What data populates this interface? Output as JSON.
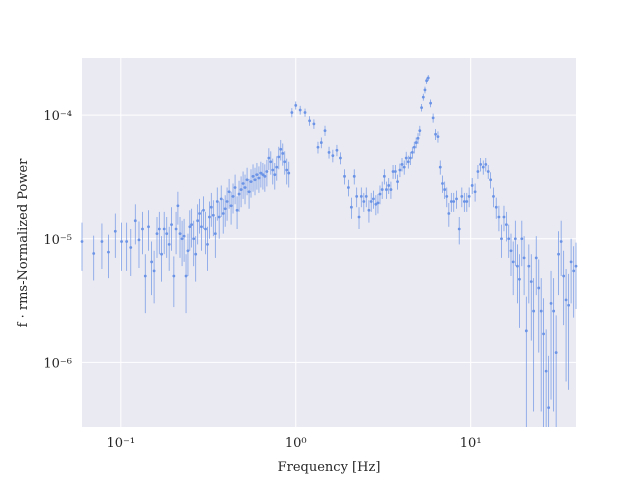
{
  "chart_data": {
    "type": "scatter",
    "title": "",
    "xlabel": "Frequency [Hz]",
    "ylabel": "f · rms-Normalized Power",
    "xscale": "log",
    "yscale": "log",
    "xlim": [
      0.06,
      40
    ],
    "ylim": [
      3e-07,
      0.00029
    ],
    "grid": true,
    "colors": {
      "background": "#eaeaf2",
      "grid": "#ffffff",
      "points": "#6b93e6",
      "text": "#262626"
    },
    "x_ticks": [
      {
        "value": 0.1,
        "label": "10⁻¹"
      },
      {
        "value": 1,
        "label": "10⁰"
      },
      {
        "value": 10,
        "label": "10¹"
      }
    ],
    "y_ticks": [
      {
        "value": 1e-06,
        "label": "10⁻⁶"
      },
      {
        "value": 1e-05,
        "label": "10⁻⁵"
      },
      {
        "value": 0.0001,
        "label": "10⁻⁴"
      }
    ],
    "series": [
      {
        "points": [
          [
            0.06,
            9.5e-06,
            4e-06
          ],
          [
            0.07,
            7.6e-06,
            3e-06
          ],
          [
            0.078,
            9.5e-06,
            3.8e-06
          ],
          [
            0.085,
            7.8e-06,
            3e-06
          ],
          [
            0.093,
            1.15e-05,
            4.5e-06
          ],
          [
            0.101,
            9.5e-06,
            4e-06
          ],
          [
            0.108,
            9.5e-06,
            4e-06
          ],
          [
            0.114,
            8.5e-06,
            3.5e-06
          ],
          [
            0.121,
            1.4e-05,
            5e-06
          ],
          [
            0.127,
            9.8e-06,
            4e-06
          ],
          [
            0.133,
            1.2e-05,
            4.5e-06
          ],
          [
            0.138,
            5e-06,
            2.5e-06
          ],
          [
            0.144,
            1.25e-05,
            4.5e-06
          ],
          [
            0.15,
            6.5e-06,
            3e-06
          ],
          [
            0.155,
            5.5e-06,
            2.5e-06
          ],
          [
            0.161,
            1.1e-05,
            4e-06
          ],
          [
            0.166,
            1.2e-05,
            4.5e-06
          ],
          [
            0.171,
            7.5e-06,
            3e-06
          ],
          [
            0.177,
            1.2e-05,
            4.5e-06
          ],
          [
            0.183,
            1.1e-05,
            4e-06
          ],
          [
            0.189,
            9e-06,
            3.5e-06
          ],
          [
            0.195,
            1.3e-05,
            5e-06
          ],
          [
            0.201,
            5e-06,
            2.2e-06
          ],
          [
            0.207,
            1.2e-05,
            4.5e-06
          ],
          [
            0.212,
            1.85e-05,
            5.5e-06
          ],
          [
            0.218,
            1.1e-05,
            4e-06
          ],
          [
            0.224,
            1e-05,
            4e-06
          ],
          [
            0.23,
            1.05e-05,
            4e-06
          ],
          [
            0.236,
            5e-06,
            2.5e-06
          ],
          [
            0.242,
            8e-06,
            3e-06
          ],
          [
            0.248,
            1.25e-05,
            4.5e-06
          ],
          [
            0.254,
            1.3e-05,
            4.5e-06
          ],
          [
            0.261,
            1e-05,
            4e-06
          ],
          [
            0.268,
            7.5e-06,
            3e-06
          ],
          [
            0.275,
            1.4e-05,
            5e-06
          ],
          [
            0.282,
            1.6e-05,
            5e-06
          ],
          [
            0.289,
            1.25e-05,
            4.5e-06
          ],
          [
            0.297,
            1.7e-05,
            5e-06
          ],
          [
            0.305,
            1.2e-05,
            4.5e-06
          ],
          [
            0.313,
            9e-06,
            3.5e-06
          ],
          [
            0.321,
            1.5e-05,
            5e-06
          ],
          [
            0.329,
            1.8e-05,
            5.5e-06
          ],
          [
            0.338,
            1.55e-05,
            5e-06
          ],
          [
            0.347,
            1.1e-05,
            4e-06
          ],
          [
            0.356,
            2e-05,
            6e-06
          ],
          [
            0.365,
            1.5e-05,
            5e-06
          ],
          [
            0.375,
            2.1e-05,
            6e-06
          ],
          [
            0.385,
            1.6e-05,
            5e-06
          ],
          [
            0.395,
            1.75e-05,
            5e-06
          ],
          [
            0.405,
            2e-05,
            6e-06
          ],
          [
            0.416,
            2.4e-05,
            6.5e-06
          ],
          [
            0.427,
            1.85e-05,
            5.5e-06
          ],
          [
            0.438,
            2.2e-05,
            6e-06
          ],
          [
            0.45,
            2.6e-05,
            7e-06
          ],
          [
            0.462,
            1.7e-05,
            5e-06
          ],
          [
            0.474,
            2.3e-05,
            6.5e-06
          ],
          [
            0.487,
            2.5e-05,
            7e-06
          ],
          [
            0.5,
            2.8e-05,
            7e-06
          ],
          [
            0.513,
            2.6e-05,
            7e-06
          ],
          [
            0.527,
            3e-05,
            7.5e-06
          ],
          [
            0.541,
            2.4e-05,
            6.5e-06
          ],
          [
            0.555,
            2.9e-05,
            7.5e-06
          ],
          [
            0.57,
            3.2e-05,
            8e-06
          ],
          [
            0.585,
            3e-05,
            7.5e-06
          ],
          [
            0.6,
            3.3e-05,
            8e-06
          ],
          [
            0.616,
            3.1e-05,
            7.5e-06
          ],
          [
            0.632,
            3.4e-05,
            8e-06
          ],
          [
            0.649,
            3.3e-05,
            8e-06
          ],
          [
            0.666,
            3.2e-05,
            8e-06
          ],
          [
            0.684,
            3.5e-05,
            8.5e-06
          ],
          [
            0.702,
            4.5e-05,
            9e-06
          ],
          [
            0.72,
            4.2e-05,
            9e-06
          ],
          [
            0.739,
            3.6e-05,
            8.5e-06
          ],
          [
            0.759,
            3.3e-05,
            8e-06
          ],
          [
            0.779,
            3.8e-05,
            8.5e-06
          ],
          [
            0.8,
            4.6e-05,
            9.5e-06
          ],
          [
            0.821,
            5.3e-05,
            1e-05
          ],
          [
            0.843,
            4.9e-05,
            1e-05
          ],
          [
            0.865,
            4.2e-05,
            9e-06
          ],
          [
            0.888,
            3.6e-05,
            8.5e-06
          ],
          [
            0.912,
            3.4e-05,
            8e-06
          ],
          [
            0.95,
            0.000105,
            9e-06
          ],
          [
            1.0,
            0.00012,
            9e-06
          ],
          [
            1.06,
            0.00011,
            9e-06
          ],
          [
            1.13,
            0.000105,
            8e-06
          ],
          [
            1.2,
            9e-05,
            8e-06
          ],
          [
            1.27,
            8.5e-05,
            7.5e-06
          ],
          [
            1.34,
            5.5e-05,
            6e-06
          ],
          [
            1.4,
            6e-05,
            6e-06
          ],
          [
            1.47,
            7.5e-05,
            7e-06
          ],
          [
            1.55,
            5e-05,
            5.5e-06
          ],
          [
            1.63,
            4.7e-05,
            5.5e-06
          ],
          [
            1.72,
            5.2e-05,
            5.5e-06
          ],
          [
            1.8,
            4.5e-05,
            5e-06
          ],
          [
            1.9,
            3.2e-05,
            4.5e-06
          ],
          [
            2.0,
            2.6e-05,
            4e-06
          ],
          [
            2.08,
            1.8e-05,
            3.5e-06
          ],
          [
            2.16,
            3.2e-05,
            4.5e-06
          ],
          [
            2.23,
            2.2e-05,
            4e-06
          ],
          [
            2.3,
            1.5e-05,
            3e-06
          ],
          [
            2.37,
            2.2e-05,
            4e-06
          ],
          [
            2.45,
            2e-05,
            3.5e-06
          ],
          [
            2.53,
            2.2e-05,
            4e-06
          ],
          [
            2.62,
            1.7e-05,
            3.5e-06
          ],
          [
            2.7,
            2e-05,
            3.5e-06
          ],
          [
            2.78,
            2.1e-05,
            3.5e-06
          ],
          [
            2.87,
            1.9e-05,
            3.5e-06
          ],
          [
            2.95,
            1.95e-05,
            3.5e-06
          ],
          [
            3.03,
            2.3e-05,
            4e-06
          ],
          [
            3.12,
            2.5e-05,
            4e-06
          ],
          [
            3.21,
            3.2e-05,
            4.5e-06
          ],
          [
            3.3,
            2.5e-05,
            4e-06
          ],
          [
            3.4,
            2.7e-05,
            4e-06
          ],
          [
            3.5,
            2.5e-05,
            4e-06
          ],
          [
            3.6,
            3.5e-05,
            4.5e-06
          ],
          [
            3.71,
            3.5e-05,
            4.5e-06
          ],
          [
            3.82,
            2.9e-05,
            4e-06
          ],
          [
            3.94,
            3.6e-05,
            4.5e-06
          ],
          [
            4.05,
            4e-05,
            5e-06
          ],
          [
            4.17,
            3.8e-05,
            5e-06
          ],
          [
            4.28,
            4.5e-05,
            5.5e-06
          ],
          [
            4.4,
            4.2e-05,
            5e-06
          ],
          [
            4.52,
            4.5e-05,
            5.5e-06
          ],
          [
            4.64,
            5e-05,
            5.5e-06
          ],
          [
            4.76,
            5.5e-05,
            6e-06
          ],
          [
            4.88,
            6e-05,
            6e-06
          ],
          [
            5.0,
            6.5e-05,
            6.5e-06
          ],
          [
            5.12,
            7.5e-05,
            7e-06
          ],
          [
            5.24,
            0.000115,
            8e-06
          ],
          [
            5.36,
            0.00014,
            9e-06
          ],
          [
            5.48,
            0.00016,
            1e-05
          ],
          [
            5.6,
            0.00019,
            1.1e-05
          ],
          [
            5.72,
            0.0002,
            1.1e-05
          ],
          [
            5.9,
            0.000125,
            9e-06
          ],
          [
            6.1,
            9.5e-05,
            8e-06
          ],
          [
            6.3,
            7e-05,
            7e-06
          ],
          [
            6.5,
            6.7e-05,
            7e-06
          ],
          [
            6.7,
            3.8e-05,
            5e-06
          ],
          [
            6.9,
            2.8e-05,
            4.5e-06
          ],
          [
            7.1,
            2.5e-05,
            4e-06
          ],
          [
            7.3,
            2.2e-05,
            4e-06
          ],
          [
            7.5,
            1.6e-05,
            3.5e-06
          ],
          [
            7.75,
            2e-05,
            3.5e-06
          ],
          [
            8.0,
            2e-05,
            3.5e-06
          ],
          [
            8.3,
            2.1e-05,
            3.5e-06
          ],
          [
            8.6,
            1.2e-05,
            3e-06
          ],
          [
            8.9,
            2.2e-05,
            4e-06
          ],
          [
            9.2,
            2e-05,
            3.5e-06
          ],
          [
            9.5,
            2e-05,
            3.5e-06
          ],
          [
            9.8,
            2.2e-05,
            4e-06
          ],
          [
            10.2,
            2.7e-05,
            4e-06
          ],
          [
            10.6,
            2.4e-05,
            4e-06
          ],
          [
            11.0,
            3.5e-05,
            4.5e-06
          ],
          [
            11.4,
            4e-05,
            5e-06
          ],
          [
            11.8,
            3.8e-05,
            5e-06
          ],
          [
            12.2,
            4e-05,
            5e-06
          ],
          [
            12.6,
            3.5e-05,
            4.5e-06
          ],
          [
            13.0,
            3e-05,
            4.5e-06
          ],
          [
            13.5,
            2.2e-05,
            4e-06
          ],
          [
            14.0,
            1.8e-05,
            3.5e-06
          ],
          [
            14.5,
            1.5e-05,
            3.5e-06
          ],
          [
            15.0,
            1e-05,
            3e-06
          ],
          [
            15.5,
            1.5e-05,
            3.5e-06
          ],
          [
            16.0,
            1.3e-05,
            3.5e-06
          ],
          [
            16.5,
            1e-05,
            3e-06
          ],
          [
            17.0,
            8e-06,
            3e-06
          ],
          [
            17.5,
            6.5e-06,
            3e-06
          ],
          [
            18.0,
            1e-05,
            4e-06
          ],
          [
            18.5,
            6e-06,
            3e-06
          ],
          [
            19.0,
            4.7e-06,
            2.8e-06
          ],
          [
            19.6,
            1e-05,
            4e-06
          ],
          [
            20.2,
            7e-06,
            3.5e-06
          ],
          [
            20.8,
            1.8e-06,
            1.6e-06
          ],
          [
            21.5,
            6e-06,
            3e-06
          ],
          [
            22.2,
            4.5e-06,
            3e-06
          ],
          [
            22.9,
            2.6e-06,
            2.2e-06
          ],
          [
            23.7,
            7e-06,
            3.5e-06
          ],
          [
            24.5,
            4e-06,
            2.8e-06
          ],
          [
            25.3,
            2.6e-06,
            2.2e-06
          ],
          [
            26.1,
            1.7e-06,
            1.6e-06
          ],
          [
            27.0,
            8.5e-07,
            1e-06
          ],
          [
            27.9,
            4.3e-07,
            7e-07
          ],
          [
            28.8,
            3e-06,
            2.5e-06
          ],
          [
            29.8,
            2.6e-06,
            2.2e-06
          ],
          [
            30.8,
            1.2e-06,
            1.2e-06
          ],
          [
            31.8,
            7.5e-06,
            4e-06
          ],
          [
            32.9,
            9.5e-06,
            4.5e-06
          ],
          [
            34.0,
            5e-06,
            3e-06
          ],
          [
            35.1,
            3.2e-06,
            2.5e-06
          ],
          [
            36.3,
            2.9e-06,
            2.3e-06
          ],
          [
            37.5,
            6.5e-06,
            3.5e-06
          ],
          [
            38.8,
            5.5e-06,
            3.2e-06
          ],
          [
            40.0,
            6e-06,
            3.3e-06
          ]
        ]
      }
    ]
  }
}
